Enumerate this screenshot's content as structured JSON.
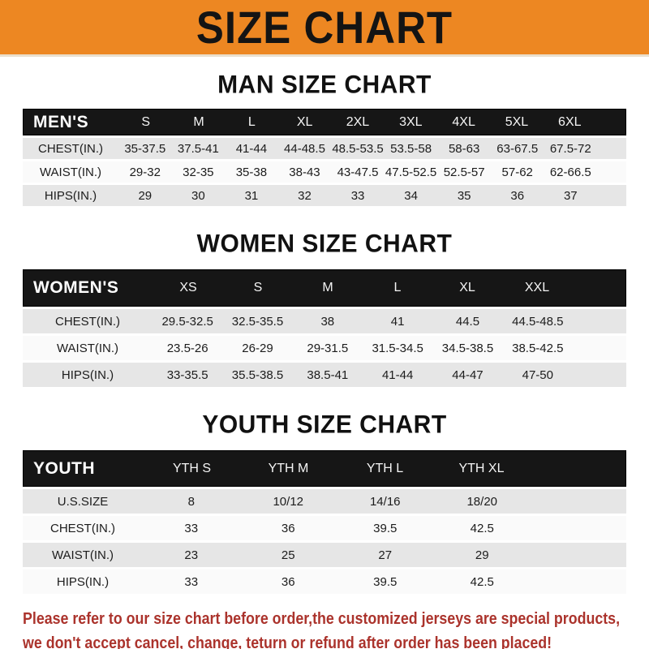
{
  "banner": {
    "title": "SIZE CHART",
    "bg_color": "#ED8722",
    "text_color": "#141414"
  },
  "sections": [
    {
      "heading": "MAN SIZE CHART",
      "table": {
        "header_label": "MEN'S",
        "columns": [
          "S",
          "M",
          "L",
          "XL",
          "2XL",
          "3XL",
          "4XL",
          "5XL",
          "6XL"
        ],
        "rows": [
          {
            "label": "CHEST(IN.)",
            "values": [
              "35-37.5",
              "37.5-41",
              "41-44",
              "44-48.5",
              "48.5-53.5",
              "53.5-58",
              "58-63",
              "63-67.5",
              "67.5-72"
            ]
          },
          {
            "label": "WAIST(IN.)",
            "values": [
              "29-32",
              "32-35",
              "35-38",
              "38-43",
              "43-47.5",
              "47.5-52.5",
              "52.5-57",
              "57-62",
              "62-66.5"
            ]
          },
          {
            "label": "HIPS(IN.)",
            "values": [
              "29",
              "30",
              "31",
              "32",
              "33",
              "34",
              "35",
              "36",
              "37"
            ]
          }
        ]
      }
    },
    {
      "heading": "WOMEN SIZE CHART",
      "table": {
        "header_label": "WOMEN'S",
        "columns": [
          "XS",
          "S",
          "M",
          "L",
          "XL",
          "XXL"
        ],
        "rows": [
          {
            "label": "CHEST(IN.)",
            "values": [
              "29.5-32.5",
              "32.5-35.5",
              "38",
              "41",
              "44.5",
              "44.5-48.5"
            ]
          },
          {
            "label": "WAIST(IN.)",
            "values": [
              "23.5-26",
              "26-29",
              "29-31.5",
              "31.5-34.5",
              "34.5-38.5",
              "38.5-42.5"
            ]
          },
          {
            "label": "HIPS(IN.)",
            "values": [
              "33-35.5",
              "35.5-38.5",
              "38.5-41",
              "41-44",
              "44-47",
              "47-50"
            ]
          }
        ]
      }
    },
    {
      "heading": "YOUTH SIZE CHART",
      "table": {
        "header_label": "YOUTH",
        "columns": [
          "YTH S",
          "YTH M",
          "YTH L",
          "YTH XL"
        ],
        "rows": [
          {
            "label": "U.S.SIZE",
            "values": [
              "8",
              "10/12",
              "14/16",
              "18/20"
            ]
          },
          {
            "label": "CHEST(IN.)",
            "values": [
              "33",
              "36",
              "39.5",
              "42.5"
            ]
          },
          {
            "label": "WAIST(IN.)",
            "values": [
              "23",
              "25",
              "27",
              "29"
            ]
          },
          {
            "label": "HIPS(IN.)",
            "values": [
              "33",
              "36",
              "39.5",
              "42.5"
            ]
          }
        ]
      }
    }
  ],
  "disclaimer": {
    "line1": "Please refer to our size chart before order,the customized jerseys are special products,",
    "line2": "we don't accept cancel, change, teturn or refund after order has been placed!",
    "color": "#AB332C"
  }
}
